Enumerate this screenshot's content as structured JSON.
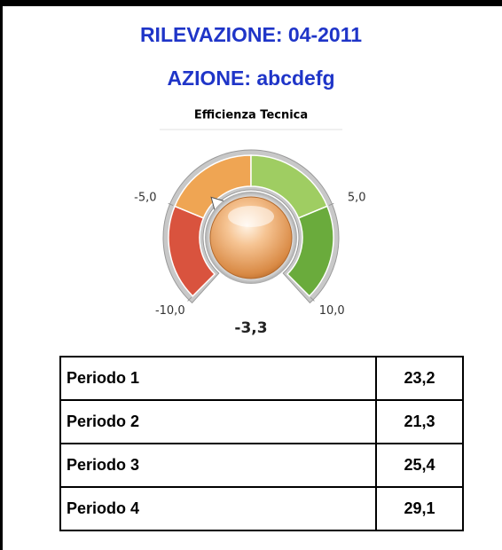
{
  "header": {
    "title": "RILEVAZIONE: 04-2011",
    "subtitle": "AZIONE: abcdefg"
  },
  "chart_data": {
    "type": "gauge",
    "title": "Efficienza Tecnica",
    "values": [
      -3.3
    ],
    "value_labels": [
      "-3,3"
    ],
    "ylim": [
      -10,
      10
    ],
    "yticks": [
      {
        "value": -10,
        "label": "-10,0"
      },
      {
        "value": -5,
        "label": "-5,0"
      },
      {
        "value": 5,
        "label": "5,0"
      },
      {
        "value": 10,
        "label": "10,0"
      }
    ],
    "bands": [
      {
        "from": -10,
        "to": -5,
        "color": "#d9533e"
      },
      {
        "from": -5,
        "to": 0,
        "color": "#efa553"
      },
      {
        "from": 0,
        "to": 5,
        "color": "#9fcd62"
      },
      {
        "from": 5,
        "to": 10,
        "color": "#6aab3c"
      }
    ]
  },
  "table": {
    "rows": [
      [
        "Periodo 1",
        "23,2"
      ],
      [
        "Periodo 2",
        "21,3"
      ],
      [
        "Periodo 3",
        "25,4"
      ],
      [
        "Periodo 4",
        "29,1"
      ]
    ]
  }
}
